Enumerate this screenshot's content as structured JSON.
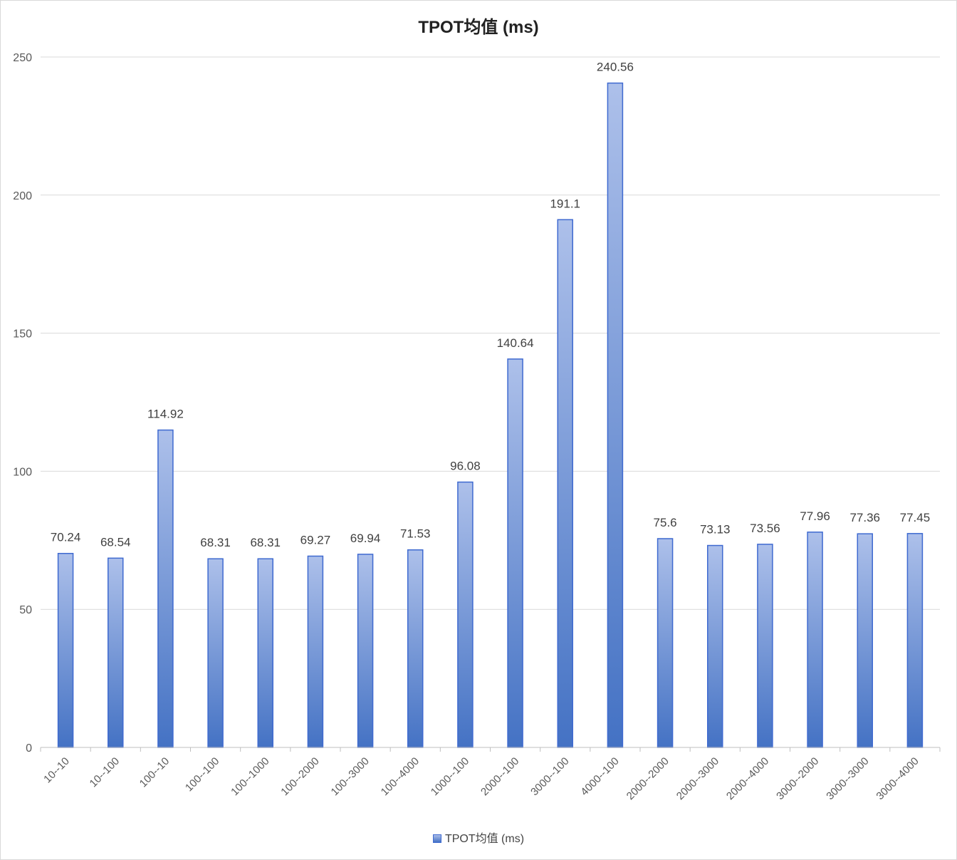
{
  "chart_data": {
    "type": "bar",
    "title": "TPOT均值 (ms)",
    "xlabel": "",
    "ylabel": "",
    "ylim": [
      0,
      250
    ],
    "yticks": [
      0,
      50,
      100,
      150,
      200,
      250
    ],
    "grid": true,
    "legend_position": "bottom",
    "categories": [
      "10--10",
      "10--100",
      "100--10",
      "100--100",
      "100--1000",
      "100--2000",
      "100--3000",
      "100--4000",
      "1000--100",
      "2000--100",
      "3000--100",
      "4000--100",
      "2000--2000",
      "2000--3000",
      "2000--4000",
      "3000--2000",
      "3000--3000",
      "3000--4000"
    ],
    "series": [
      {
        "name": "TPOT均值 (ms)",
        "values": [
          70.24,
          68.54,
          114.92,
          68.31,
          68.31,
          69.27,
          69.94,
          71.53,
          96.08,
          140.64,
          191.1,
          240.56,
          75.6,
          73.13,
          73.56,
          77.96,
          77.36,
          77.45
        ],
        "data_labels": [
          "70.24",
          "68.54",
          "114.92",
          "68.31",
          "68.31",
          "69.27",
          "69.94",
          "71.53",
          "96.08",
          "140.64",
          "191.1",
          "240.56",
          "75.6",
          "73.13",
          "73.56",
          "77.96",
          "77.36",
          "77.45"
        ],
        "color_top": "#adc0ea",
        "color_bottom": "#4472c4",
        "border_color": "#3f6ad0"
      }
    ],
    "colors": {
      "grid": "#d9d9d9",
      "axis": "#bfbfbf",
      "text": "#404040",
      "tick_text": "#595959"
    }
  }
}
